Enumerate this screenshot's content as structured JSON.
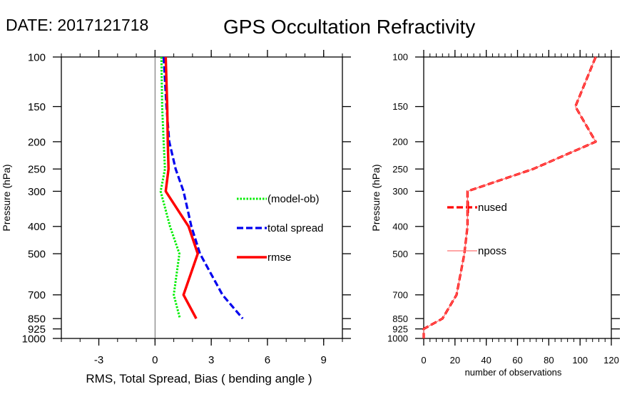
{
  "header": {
    "date_label": "DATE: 2017121718",
    "title": "GPS Occultation Refractivity"
  },
  "chart_data": [
    {
      "type": "line",
      "panel": "left",
      "title": "",
      "xlabel": "RMS, Total Spread, Bias ( bending angle )",
      "ylabel": "Pressure (hPa)",
      "xlim": [
        -5,
        10
      ],
      "ylim": [
        1000,
        100
      ],
      "yscale": "log",
      "x_ticks": [
        -3,
        0,
        3,
        6,
        9
      ],
      "x_tick_labels": [
        "-3",
        "0",
        "3",
        "6",
        "9"
      ],
      "y_ticks": [
        100,
        150,
        200,
        250,
        300,
        400,
        500,
        700,
        850,
        925,
        1000
      ],
      "y_tick_labels": [
        "100",
        "150",
        "200",
        "250",
        "300",
        "400",
        "500",
        "700",
        "850",
        "925",
        "1000"
      ],
      "zero_line": true,
      "grid": false,
      "legend_position": "right-center",
      "levels": [
        100,
        150,
        200,
        250,
        300,
        400,
        500,
        700,
        850
      ],
      "series": [
        {
          "name": "(model-ob)",
          "style": "dotted",
          "color": "#00ee00",
          "values": [
            0.34,
            0.38,
            0.46,
            0.53,
            0.3,
            0.8,
            1.3,
            1.0,
            1.33
          ]
        },
        {
          "name": "total spread",
          "style": "dashed",
          "color": "#0000ee",
          "values": [
            0.46,
            0.61,
            0.76,
            1.1,
            1.52,
            1.94,
            2.4,
            3.6,
            4.68
          ]
        },
        {
          "name": "rmse",
          "style": "solid",
          "color": "#ff0000",
          "values": [
            0.57,
            0.65,
            0.68,
            0.72,
            0.57,
            1.79,
            2.28,
            1.52,
            2.2
          ]
        }
      ]
    },
    {
      "type": "line",
      "panel": "right",
      "title": "",
      "xlabel": "number of observations",
      "ylabel": "Pressure (hPa)",
      "xlim": [
        0,
        120
      ],
      "ylim": [
        1000,
        100
      ],
      "yscale": "log",
      "x_ticks": [
        0,
        20,
        40,
        60,
        80,
        100,
        120
      ],
      "x_tick_labels": [
        "0",
        "20",
        "40",
        "60",
        "80",
        "100",
        "120"
      ],
      "y_ticks": [
        100,
        150,
        200,
        250,
        300,
        400,
        500,
        700,
        850,
        925,
        1000
      ],
      "y_tick_labels": [
        "100",
        "150",
        "200",
        "250",
        "300",
        "400",
        "500",
        "700",
        "850",
        "925",
        "1000"
      ],
      "grid": false,
      "legend_position": "left-center",
      "levels": [
        100,
        150,
        200,
        250,
        300,
        400,
        500,
        700,
        850,
        925,
        1000
      ],
      "series": [
        {
          "name": "nused",
          "style": "dashed",
          "color": "#ff0000",
          "values": [
            110,
            97,
            110,
            70,
            28,
            28,
            26,
            21,
            12,
            0,
            0
          ]
        },
        {
          "name": "nposs",
          "style": "solid-thin",
          "color": "#ff7070",
          "values": [
            110,
            97,
            110,
            70,
            28,
            28,
            26,
            21,
            12,
            0,
            0
          ]
        }
      ]
    }
  ]
}
